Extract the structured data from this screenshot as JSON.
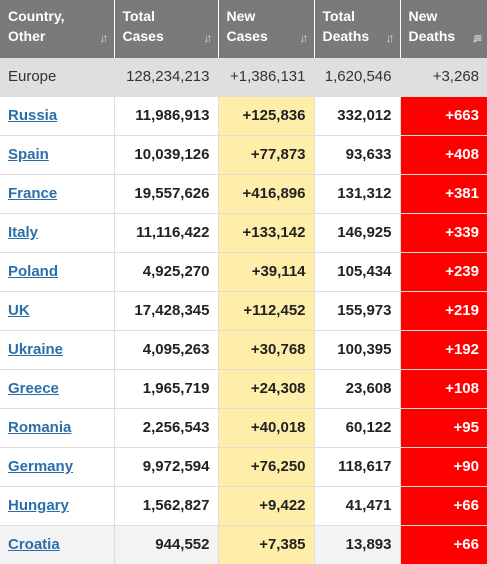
{
  "headers": [
    {
      "line1": "Country,",
      "line2": "Other",
      "sort_icon": "sort-arrows-icon"
    },
    {
      "line1": "Total",
      "line2": "Cases",
      "sort_icon": "sort-arrows-icon"
    },
    {
      "line1": "New",
      "line2": "Cases",
      "sort_icon": "sort-arrows-icon"
    },
    {
      "line1": "Total",
      "line2": "Deaths",
      "sort_icon": "sort-arrows-icon"
    },
    {
      "line1": "New",
      "line2": "Deaths",
      "sort_icon": "sort-descending-icon"
    }
  ],
  "region": {
    "name": "Europe",
    "total_cases": "128,234,213",
    "new_cases": "+1,386,131",
    "total_deaths": "1,620,546",
    "new_deaths": "+3,268"
  },
  "rows": [
    {
      "country": "Russia",
      "total_cases": "11,986,913",
      "new_cases": "+125,836",
      "total_deaths": "332,012",
      "new_deaths": "+663"
    },
    {
      "country": "Spain",
      "total_cases": "10,039,126",
      "new_cases": "+77,873",
      "total_deaths": "93,633",
      "new_deaths": "+408"
    },
    {
      "country": "France",
      "total_cases": "19,557,626",
      "new_cases": "+416,896",
      "total_deaths": "131,312",
      "new_deaths": "+381"
    },
    {
      "country": "Italy",
      "total_cases": "11,116,422",
      "new_cases": "+133,142",
      "total_deaths": "146,925",
      "new_deaths": "+339"
    },
    {
      "country": "Poland",
      "total_cases": "4,925,270",
      "new_cases": "+39,114",
      "total_deaths": "105,434",
      "new_deaths": "+239"
    },
    {
      "country": "UK",
      "total_cases": "17,428,345",
      "new_cases": "+112,452",
      "total_deaths": "155,973",
      "new_deaths": "+219"
    },
    {
      "country": "Ukraine",
      "total_cases": "4,095,263",
      "new_cases": "+30,768",
      "total_deaths": "100,395",
      "new_deaths": "+192"
    },
    {
      "country": "Greece",
      "total_cases": "1,965,719",
      "new_cases": "+24,308",
      "total_deaths": "23,608",
      "new_deaths": "+108"
    },
    {
      "country": "Romania",
      "total_cases": "2,256,543",
      "new_cases": "+40,018",
      "total_deaths": "60,122",
      "new_deaths": "+95"
    },
    {
      "country": "Germany",
      "total_cases": "9,972,594",
      "new_cases": "+76,250",
      "total_deaths": "118,617",
      "new_deaths": "+90"
    },
    {
      "country": "Hungary",
      "total_cases": "1,562,827",
      "new_cases": "+9,422",
      "total_deaths": "41,471",
      "new_deaths": "+66"
    },
    {
      "country": "Croatia",
      "total_cases": "944,552",
      "new_cases": "+7,385",
      "total_deaths": "13,893",
      "new_deaths": "+66"
    }
  ],
  "colors": {
    "header_bg": "#7a7a7a",
    "region_bg": "#dfdfdf",
    "new_cases_bg": "#ffeeaa",
    "new_deaths_bg": "#ff0000",
    "link": "#2c6fa8"
  }
}
